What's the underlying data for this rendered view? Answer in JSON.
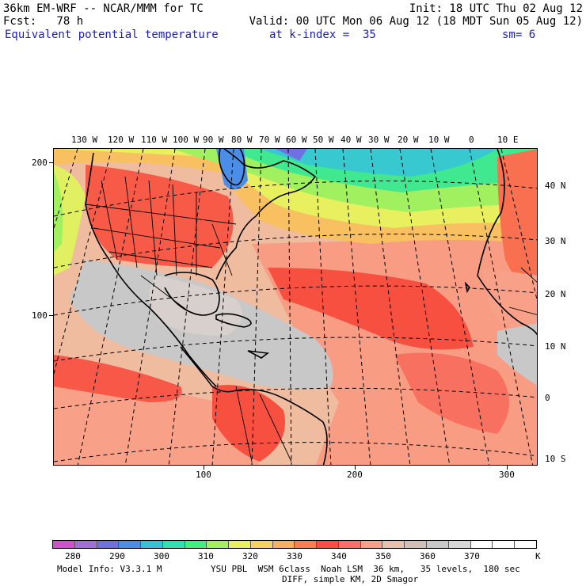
{
  "header": {
    "model": "36km EM-WRF -- NCAR/MMM for TC",
    "init": "Init: 18 UTC Thu 02 Aug 12",
    "fcst": "Fcst:   78 h",
    "valid": "Valid: 00 UTC Mon 06 Aug 12 (18 MDT Sun 05 Aug 12)",
    "field": "Equivalent potential temperature",
    "level": "at k-index =  35",
    "smooth": "sm= 6"
  },
  "map": {
    "top_lon_labels": [
      "130 W",
      "120 W",
      "110 W",
      "100 W",
      "90 W",
      "80 W",
      "70 W",
      "60 W",
      "50 W",
      "40 W",
      "30 W",
      "20 W",
      "10 W",
      "0",
      "10 E"
    ],
    "right_lat_labels": [
      "40 N",
      "30 N",
      "20 N",
      "10 N",
      "0",
      "10 S"
    ],
    "left_grid_labels": [
      "200",
      "100"
    ],
    "bottom_grid_labels": [
      "100",
      "200",
      "300"
    ]
  },
  "colorbar": {
    "labels": [
      "280",
      "290",
      "300",
      "310",
      "320",
      "330",
      "340",
      "350",
      "360",
      "370"
    ],
    "unit": "K",
    "colors": [
      "#d050d0",
      "#a070d8",
      "#7070e0",
      "#4a8ee8",
      "#38c0d8",
      "#30e0b0",
      "#40f080",
      "#a0f060",
      "#e8f060",
      "#f8d060",
      "#f8b060",
      "#f88050",
      "#f85040",
      "#f87068",
      "#f8a088",
      "#e8c0b0",
      "#d0c0b8",
      "#c8c8c8",
      "#d8d8d8",
      "#ffffff",
      "#ffffff",
      "#ffffff"
    ]
  },
  "footer": {
    "line1_left": "Model Info: V3.3.1 M",
    "line1_right": "YSU PBL  WSM 6class  Noah LSM  36 km,   35 levels,  180 sec",
    "line2": "DIFF, simple KM, 2D Smagor"
  }
}
